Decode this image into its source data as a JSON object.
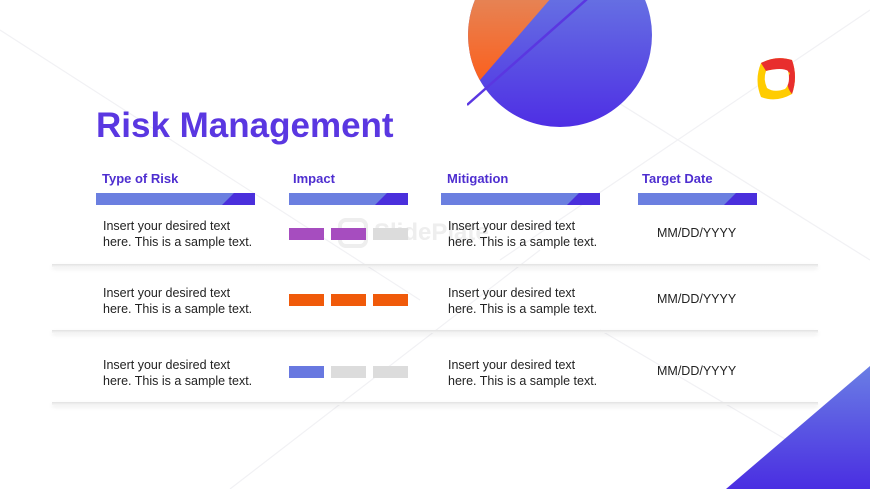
{
  "title": "Risk Management",
  "watermark": "SlidePlate",
  "columns": {
    "type": "Type of Risk",
    "impact": "Impact",
    "mitigation": "Mitigation",
    "date": "Target Date"
  },
  "rows": [
    {
      "type_line1": "Insert your desired text",
      "type_line2": "here. This is a sample text.",
      "impact_level": 2,
      "impact_of": 3,
      "impact_color": "#a64dbf",
      "mitigation_line1": "Insert your desired text",
      "mitigation_line2": "here. This is a sample text.",
      "date": "MM/DD/YYYY"
    },
    {
      "type_line1": "Insert your desired text",
      "type_line2": "here. This is a sample text.",
      "impact_level": 3,
      "impact_of": 3,
      "impact_color": "#f05a0a",
      "mitigation_line1": "Insert your desired text",
      "mitigation_line2": "here. This is a sample text.",
      "date": "MM/DD/YYYY"
    },
    {
      "type_line1": "Insert your desired text",
      "type_line2": "here. This is a sample text.",
      "impact_level": 1,
      "impact_of": 3,
      "impact_color": "#6878e0",
      "mitigation_line1": "Insert your desired text",
      "mitigation_line2": "here. This is a sample text.",
      "date": "MM/DD/YYYY"
    }
  ],
  "colors": {
    "accent": "#5a37e1",
    "header_text": "#4e2ed0",
    "bar_light": "#6b7fe0",
    "bar_dark": "#4a2fdc",
    "inactive_block": "#dcdcdc",
    "orange": "#f05a0a"
  }
}
